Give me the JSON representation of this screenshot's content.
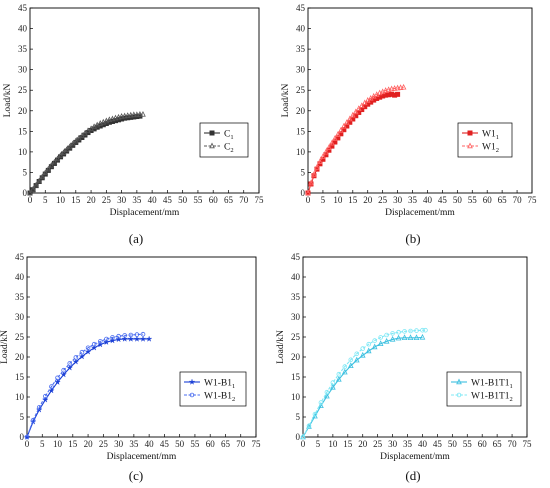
{
  "figure": {
    "panel_labels": [
      "(a)",
      "(b)",
      "(c)",
      "(d)"
    ]
  },
  "chart_data": [
    {
      "type": "line",
      "panel_label": "(a)",
      "xlabel": "Displacement/mm",
      "ylabel": "Load/kN",
      "xlim": [
        0,
        75
      ],
      "ylim": [
        0,
        45
      ],
      "xticks": [
        "0",
        "5",
        "10",
        "15",
        "20",
        "25",
        "30",
        "35",
        "40",
        "45",
        "50",
        "55",
        "60",
        "65",
        "70",
        "75"
      ],
      "yticks": [
        "0",
        "5",
        "10",
        "15",
        "20",
        "25",
        "30",
        "35",
        "40",
        "45"
      ],
      "grid": false,
      "legend_position": "right-middle",
      "series": [
        {
          "name": "C",
          "subscript": "1",
          "color": "#333333",
          "marker": "square",
          "dashed": false,
          "x": [
            0,
            1,
            2,
            3,
            4,
            5,
            6,
            7,
            8,
            9,
            10,
            11,
            12,
            13,
            14,
            15,
            16,
            17,
            18,
            19,
            20,
            21,
            22,
            23,
            24,
            25,
            26,
            27,
            28,
            29,
            30,
            31,
            32,
            33,
            34,
            35,
            36
          ],
          "y": [
            0,
            0.8,
            1.8,
            2.8,
            3.7,
            4.6,
            5.5,
            6.4,
            7.2,
            8.0,
            8.8,
            9.5,
            10.2,
            10.9,
            11.6,
            12.3,
            12.9,
            13.5,
            14.1,
            14.7,
            15.2,
            15.6,
            16.0,
            16.3,
            16.6,
            16.9,
            17.2,
            17.4,
            17.6,
            17.8,
            18.0,
            18.2,
            18.3,
            18.4,
            18.5,
            18.6,
            18.7
          ]
        },
        {
          "name": "C",
          "subscript": "2",
          "color": "#555555",
          "marker": "triangle",
          "dashed": true,
          "x": [
            0,
            1,
            2,
            3,
            4,
            5,
            6,
            7,
            8,
            9,
            10,
            11,
            12,
            13,
            14,
            15,
            16,
            17,
            18,
            19,
            20,
            21,
            22,
            23,
            24,
            25,
            26,
            27,
            28,
            29,
            30,
            31,
            32,
            33,
            34,
            35,
            36,
            37
          ],
          "y": [
            0,
            0.9,
            1.9,
            2.9,
            3.9,
            4.9,
            5.8,
            6.7,
            7.5,
            8.3,
            9.1,
            9.8,
            10.5,
            11.2,
            11.9,
            12.6,
            13.3,
            13.9,
            14.5,
            15.1,
            15.6,
            16.1,
            16.5,
            16.9,
            17.2,
            17.5,
            17.8,
            18.0,
            18.2,
            18.4,
            18.6,
            18.7,
            18.8,
            18.9,
            19.0,
            19.0,
            19.1,
            19.1
          ]
        }
      ]
    },
    {
      "type": "line",
      "panel_label": "(b)",
      "xlabel": "Displacement/mm",
      "ylabel": "Load/kN",
      "xlim": [
        0,
        75
      ],
      "ylim": [
        0,
        45
      ],
      "xticks": [
        "0",
        "5",
        "10",
        "15",
        "20",
        "25",
        "30",
        "35",
        "40",
        "45",
        "50",
        "55",
        "60",
        "65",
        "70",
        "75"
      ],
      "yticks": [
        "0",
        "5",
        "10",
        "15",
        "20",
        "25",
        "30",
        "35",
        "40",
        "45"
      ],
      "grid": false,
      "legend_position": "right-middle",
      "series": [
        {
          "name": "W1",
          "subscript": "1",
          "color": "#e02020",
          "marker": "square",
          "dashed": false,
          "x": [
            0,
            1,
            2,
            3,
            4,
            5,
            6,
            7,
            8,
            9,
            10,
            11,
            12,
            13,
            14,
            15,
            16,
            17,
            18,
            19,
            20,
            21,
            22,
            23,
            24,
            25,
            26,
            27,
            28,
            29,
            30
          ],
          "y": [
            0,
            2.2,
            4.2,
            5.8,
            7.1,
            8.2,
            9.3,
            10.4,
            11.4,
            12.4,
            13.4,
            14.4,
            15.4,
            16.3,
            17.2,
            18.0,
            18.8,
            19.6,
            20.3,
            21.0,
            21.6,
            22.1,
            22.6,
            23.0,
            23.3,
            23.6,
            23.8,
            23.9,
            24.0,
            23.8,
            24.0
          ]
        },
        {
          "name": "W1",
          "subscript": "2",
          "color": "#ff6060",
          "marker": "triangle",
          "dashed": true,
          "x": [
            0,
            1,
            2,
            3,
            4,
            5,
            6,
            7,
            8,
            9,
            10,
            11,
            12,
            13,
            14,
            15,
            16,
            17,
            18,
            19,
            20,
            21,
            22,
            23,
            24,
            25,
            26,
            27,
            28,
            29,
            30,
            31,
            32
          ],
          "y": [
            0,
            2.4,
            4.5,
            6.2,
            7.6,
            8.8,
            9.9,
            11.0,
            12.1,
            13.2,
            14.2,
            15.2,
            16.2,
            17.1,
            18.0,
            18.9,
            19.7,
            20.5,
            21.2,
            21.9,
            22.5,
            23.0,
            23.5,
            23.9,
            24.3,
            24.6,
            24.9,
            25.1,
            25.3,
            25.4,
            25.5,
            25.6,
            25.7
          ]
        }
      ]
    },
    {
      "type": "line",
      "panel_label": "(c)",
      "xlabel": "Displacement/mm",
      "ylabel": "Load/kN",
      "xlim": [
        0,
        75
      ],
      "ylim": [
        0,
        45
      ],
      "xticks": [
        "0",
        "5",
        "10",
        "15",
        "20",
        "25",
        "30",
        "35",
        "40",
        "45",
        "50",
        "55",
        "60",
        "65",
        "70",
        "75"
      ],
      "yticks": [
        "0",
        "5",
        "10",
        "15",
        "20",
        "25",
        "30",
        "35",
        "40",
        "45"
      ],
      "grid": false,
      "legend_position": "right-middle",
      "series": [
        {
          "name": "W1-B1",
          "subscript": "1",
          "color": "#1a3fd6",
          "marker": "star",
          "dashed": false,
          "x": [
            0,
            2,
            4,
            6,
            8,
            10,
            12,
            14,
            16,
            18,
            20,
            22,
            24,
            26,
            28,
            30,
            32,
            34,
            36,
            38,
            40
          ],
          "y": [
            0,
            3.8,
            6.8,
            9.3,
            11.6,
            13.7,
            15.6,
            17.3,
            18.8,
            20.1,
            21.3,
            22.3,
            23.1,
            23.7,
            24.1,
            24.4,
            24.5,
            24.5,
            24.5,
            24.5,
            24.5
          ]
        },
        {
          "name": "W1-B1",
          "subscript": "2",
          "color": "#4a6df0",
          "marker": "circle",
          "dashed": true,
          "x": [
            0,
            2,
            4,
            6,
            8,
            10,
            12,
            14,
            16,
            18,
            20,
            22,
            24,
            26,
            28,
            30,
            32,
            34,
            36,
            38
          ],
          "y": [
            0,
            4.2,
            7.4,
            10.2,
            12.6,
            14.8,
            16.7,
            18.4,
            19.9,
            21.2,
            22.3,
            23.2,
            23.9,
            24.5,
            24.9,
            25.2,
            25.4,
            25.5,
            25.6,
            25.7
          ]
        }
      ]
    },
    {
      "type": "line",
      "panel_label": "(d)",
      "xlabel": "Displacement/mm",
      "ylabel": "Load/kN",
      "xlim": [
        0,
        75
      ],
      "ylim": [
        0,
        45
      ],
      "xticks": [
        "0",
        "5",
        "10",
        "15",
        "20",
        "25",
        "30",
        "35",
        "40",
        "45",
        "50",
        "55",
        "60",
        "65",
        "70",
        "75"
      ],
      "yticks": [
        "0",
        "5",
        "10",
        "15",
        "20",
        "25",
        "30",
        "35",
        "40",
        "45"
      ],
      "grid": false,
      "legend_position": "right-middle",
      "series": [
        {
          "name": "W1-B1T1",
          "subscript": "1",
          "color": "#3cc0e0",
          "marker": "triangle",
          "dashed": false,
          "x": [
            0,
            2,
            4,
            6,
            8,
            10,
            12,
            14,
            16,
            18,
            20,
            22,
            24,
            26,
            28,
            30,
            32,
            34,
            36,
            38,
            40
          ],
          "y": [
            0,
            2.6,
            5.2,
            7.8,
            10.2,
            12.4,
            14.4,
            16.2,
            17.8,
            19.2,
            20.4,
            21.5,
            22.5,
            23.3,
            23.9,
            24.4,
            24.7,
            24.8,
            24.8,
            24.8,
            24.9
          ]
        },
        {
          "name": "W1-B1T1",
          "subscript": "2",
          "color": "#7fe8f5",
          "marker": "circle",
          "dashed": true,
          "x": [
            0,
            2,
            4,
            6,
            8,
            10,
            12,
            14,
            16,
            18,
            20,
            22,
            24,
            26,
            28,
            30,
            32,
            34,
            36,
            38,
            40,
            41
          ],
          "y": [
            0,
            2.8,
            5.7,
            8.6,
            11.2,
            13.6,
            15.7,
            17.6,
            19.3,
            20.8,
            22.1,
            23.2,
            24.1,
            24.9,
            25.5,
            25.9,
            26.2,
            26.4,
            26.5,
            26.6,
            26.7,
            26.7
          ]
        }
      ]
    }
  ]
}
